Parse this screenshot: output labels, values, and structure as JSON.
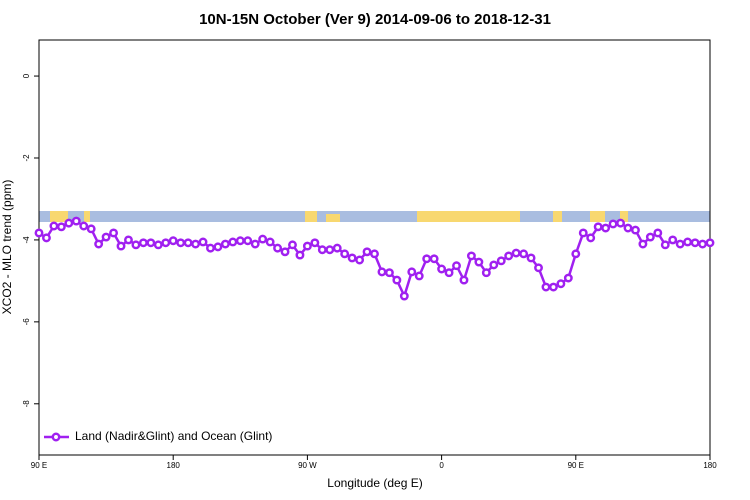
{
  "chart_data": {
    "type": "line",
    "title": "10N-15N October (Ver 9)   2014-09-06 to 2018-12-31",
    "xlabel": "Longitude (deg E)",
    "ylabel": "XCO2 - MLO trend (ppm)",
    "x": [
      90,
      95,
      100,
      105,
      110,
      115,
      120,
      125,
      130,
      135,
      140,
      145,
      150,
      155,
      160,
      165,
      170,
      175,
      180,
      185,
      190,
      195,
      200,
      205,
      210,
      215,
      220,
      225,
      230,
      235,
      240,
      245,
      250,
      255,
      260,
      265,
      270,
      275,
      280,
      285,
      290,
      295,
      300,
      305,
      310,
      315,
      320,
      325,
      330,
      335,
      340,
      345,
      350,
      355,
      360,
      365,
      370,
      375,
      380,
      385,
      390,
      395,
      400,
      405,
      410,
      415,
      420,
      425,
      430,
      435,
      440,
      445,
      450,
      455,
      460,
      465,
      470,
      475,
      480,
      485,
      490,
      495,
      500,
      505,
      510,
      515,
      520,
      525,
      530,
      535,
      540
    ],
    "series": [
      {
        "name": "Land (Nadir&Glint) and Ocean (Glint)",
        "color": "#a020f0",
        "values": [
          -3.83,
          -3.95,
          -3.66,
          -3.68,
          -3.59,
          -3.54,
          -3.66,
          -3.73,
          -4.1,
          -3.93,
          -3.83,
          -4.15,
          -4.0,
          -4.12,
          -4.07,
          -4.07,
          -4.12,
          -4.07,
          -4.02,
          -4.07,
          -4.07,
          -4.1,
          -4.05,
          -4.2,
          -4.17,
          -4.1,
          -4.05,
          -4.02,
          -4.02,
          -4.1,
          -3.98,
          -4.05,
          -4.2,
          -4.29,
          -4.12,
          -4.37,
          -4.15,
          -4.07,
          -4.24,
          -4.24,
          -4.2,
          -4.34,
          -4.44,
          -4.49,
          -4.29,
          -4.34,
          -4.78,
          -4.8,
          -4.98,
          -5.37,
          -4.78,
          -4.88,
          -4.46,
          -4.46,
          -4.71,
          -4.8,
          -4.63,
          -4.98,
          -4.39,
          -4.54,
          -4.8,
          -4.61,
          -4.51,
          -4.39,
          -4.32,
          -4.34,
          -4.44,
          -4.68,
          -5.15,
          -5.15,
          -5.07,
          -4.93,
          -4.34,
          -3.83,
          -3.95,
          -3.68,
          -3.71,
          -3.61,
          -3.59,
          -3.71,
          -3.76,
          -4.1,
          -3.93,
          -3.83,
          -4.12,
          -4.0,
          -4.1,
          -4.05,
          -4.07,
          -4.1,
          -4.07
        ]
      }
    ],
    "xlim": [
      90,
      540
    ],
    "xticks": [
      {
        "value": 90,
        "label": "90 E"
      },
      180,
      {
        "value": 270,
        "label": "90 W"
      },
      {
        "value": 360,
        "label": "0"
      },
      {
        "value": 450,
        "label": "90 E"
      },
      {
        "value": 540,
        "label": "180"
      }
    ],
    "ylim": [
      -9.25,
      0.88
    ],
    "yticks": [
      0,
      -2,
      -4,
      -6,
      -8
    ],
    "legend": "bottom-left"
  }
}
